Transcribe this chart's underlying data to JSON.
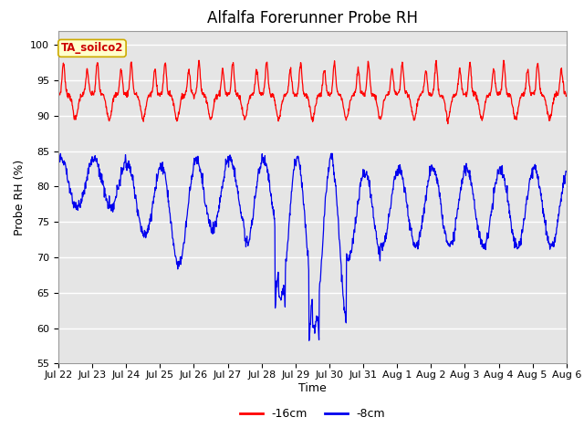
{
  "title": "Alfalfa Forerunner Probe RH",
  "ylabel": "Probe RH (%)",
  "xlabel": "Time",
  "ylim": [
    55,
    102
  ],
  "yticks": [
    55,
    60,
    65,
    70,
    75,
    80,
    85,
    90,
    95,
    100
  ],
  "background_color": "#ffffff",
  "plot_bg_color": "#e5e5e5",
  "line1_color": "#ff0000",
  "line2_color": "#0000ee",
  "line1_label": "-16cm",
  "line2_label": "-8cm",
  "annotation_text": "TA_soilco2",
  "annotation_bg": "#ffffcc",
  "annotation_border": "#ccaa00",
  "grid_color": "#ffffff",
  "title_fontsize": 12,
  "label_fontsize": 9,
  "tick_fontsize": 8,
  "x_tick_labels": [
    "Jul 22",
    "Jul 23",
    "Jul 24",
    "Jul 25",
    "Jul 26",
    "Jul 27",
    "Jul 28",
    "Jul 29",
    "Jul 30",
    "Jul 31",
    "Aug 1",
    "Aug 2",
    "Aug 3",
    "Aug 4",
    "Aug 5",
    "Aug 6"
  ],
  "n_points": 1440
}
